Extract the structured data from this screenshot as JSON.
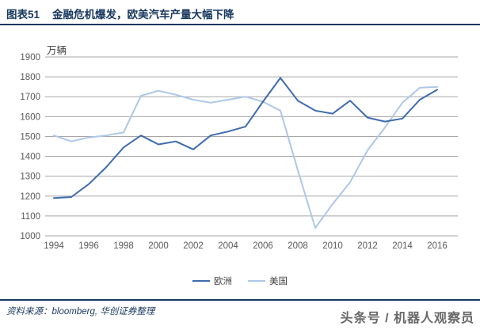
{
  "header": {
    "title_label": "图表51",
    "title_text": "金融危机爆发，欧美汽车产量大幅下降"
  },
  "footer": {
    "source": "资料来源：bloomberg, 华创证券整理",
    "watermark": "头条号 / 机器人观察员"
  },
  "colors": {
    "navy": "#17375E",
    "gridline": "#A6A6A6",
    "tick_text": "#595959",
    "europe_line": "#3E6BAD",
    "us_line": "#AEC7E8"
  },
  "chart_data": {
    "type": "line",
    "title": "金融危机爆发，欧美汽车产量大幅下降",
    "ylabel": "万辆",
    "xlabel": "",
    "grid": true,
    "legend_position": "bottom",
    "ylim": [
      1000,
      1900
    ],
    "y_ticks": [
      1900,
      1800,
      1700,
      1600,
      1500,
      1400,
      1300,
      1200,
      1100,
      1000
    ],
    "x_ticks": [
      1994,
      1996,
      1998,
      2000,
      2002,
      2004,
      2006,
      2008,
      2010,
      2012,
      2014,
      2016
    ],
    "categories": [
      1994,
      1995,
      1996,
      1997,
      1998,
      1999,
      2000,
      2001,
      2002,
      2003,
      2004,
      2005,
      2006,
      2007,
      2008,
      2009,
      2010,
      2011,
      2012,
      2013,
      2014,
      2015,
      2016
    ],
    "series": [
      {
        "name": "欧洲",
        "color": "#3E6BAD",
        "values": [
          1190,
          1195,
          1260,
          1345,
          1445,
          1505,
          1460,
          1475,
          1435,
          1505,
          1525,
          1550,
          1675,
          1795,
          1680,
          1630,
          1615,
          1680,
          1595,
          1575,
          1590,
          1685,
          1735
        ]
      },
      {
        "name": "美国",
        "color": "#AEC7E8",
        "values": [
          1505,
          1475,
          1495,
          1505,
          1520,
          1705,
          1730,
          1710,
          1685,
          1670,
          1685,
          1700,
          1675,
          1630,
          1330,
          1040,
          1160,
          1270,
          1430,
          1545,
          1670,
          1745,
          1750
        ]
      }
    ]
  }
}
